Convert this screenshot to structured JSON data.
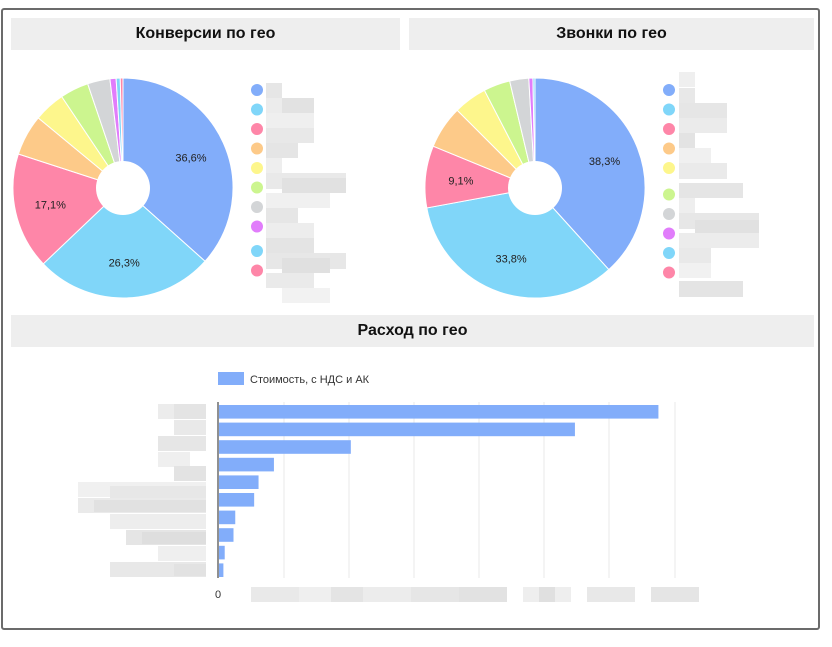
{
  "panels": {
    "conversions_title": "Конверсии по гео",
    "calls_title": "Звонки по гео",
    "spend_title": "Расход по гео"
  },
  "chart_data": [
    {
      "type": "pie",
      "donut": true,
      "title": "Конверсии по гео",
      "slices": [
        {
          "value": 36.6,
          "label": "36,6%",
          "color": "#82adfa"
        },
        {
          "value": 26.3,
          "label": "26,3%",
          "color": "#80d6f9"
        },
        {
          "value": 17.1,
          "label": "17,1%",
          "color": "#fe86a8"
        },
        {
          "value": 6.0,
          "label": "",
          "color": "#fdca89"
        },
        {
          "value": 4.6,
          "label": "",
          "color": "#fdf68c"
        },
        {
          "value": 4.2,
          "label": "",
          "color": "#ccf58f"
        },
        {
          "value": 3.3,
          "label": "",
          "color": "#d3d5d7"
        },
        {
          "value": 0.9,
          "label": "",
          "color": "#e17dfb"
        },
        {
          "value": 0.6,
          "label": "",
          "color": "#80d6f9"
        },
        {
          "value": 0.4,
          "label": "",
          "color": "#fe86a8"
        }
      ],
      "legend_colors": [
        "#82adfa",
        "#80d6f9",
        "#fe86a8",
        "#fdca89",
        "#fdf68c",
        "#ccf58f",
        "#d3d5d7",
        "#e17dfb",
        "#80d6f9",
        "#fe86a8"
      ],
      "legend_position": "right"
    },
    {
      "type": "pie",
      "donut": true,
      "title": "Звонки по гео",
      "slices": [
        {
          "value": 38.3,
          "label": "38,3%",
          "color": "#82adfa"
        },
        {
          "value": 33.8,
          "label": "33,8%",
          "color": "#80d6f9"
        },
        {
          "value": 9.1,
          "label": "9,1%",
          "color": "#fe86a8"
        },
        {
          "value": 6.3,
          "label": "",
          "color": "#fdca89"
        },
        {
          "value": 4.9,
          "label": "",
          "color": "#fdf68c"
        },
        {
          "value": 3.9,
          "label": "",
          "color": "#ccf58f"
        },
        {
          "value": 2.8,
          "label": "",
          "color": "#d3d5d7"
        },
        {
          "value": 0.6,
          "label": "",
          "color": "#e17dfb"
        },
        {
          "value": 0.3,
          "label": "",
          "color": "#80d6f9"
        }
      ],
      "legend_colors": [
        "#82adfa",
        "#80d6f9",
        "#fe86a8",
        "#fdca89",
        "#fdf68c",
        "#ccf58f",
        "#d3d5d7",
        "#e17dfb",
        "#80d6f9",
        "#fe86a8"
      ],
      "legend_position": "right"
    },
    {
      "type": "bar",
      "orientation": "horizontal",
      "title": "Расход по гео",
      "series": [
        {
          "name": "Стоимость, с НДС и АК",
          "color": "#82adfa"
        }
      ],
      "values": [
        100,
        81,
        30,
        12.5,
        9,
        8,
        3.7,
        3.3,
        1.3,
        1
      ],
      "xlim": [
        0,
        104
      ],
      "x_tick_first": "0",
      "grid": true,
      "legend_position": "top-left"
    }
  ]
}
